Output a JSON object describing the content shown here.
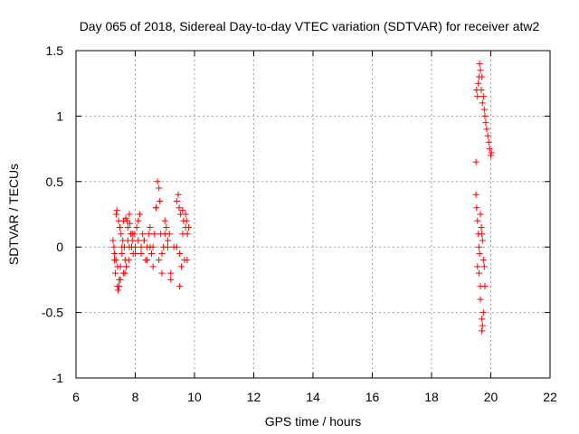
{
  "chart_data": {
    "type": "scatter",
    "title": "Day 065 of 2018, Sidereal Day-to-day VTEC variation (SDTVAR) for receiver atw2",
    "xlabel": "GPS time / hours",
    "ylabel": "SDTVAR / TECUs",
    "xlim": [
      6,
      22
    ],
    "ylim": [
      -1,
      1.5
    ],
    "xticks": [
      6,
      8,
      10,
      12,
      14,
      16,
      18,
      20,
      22
    ],
    "yticks": [
      -1,
      -0.5,
      0,
      0.5,
      1,
      1.5
    ],
    "xtick_labels": [
      "6",
      "8",
      "10",
      "12",
      "14",
      "16",
      "18",
      "20",
      "22"
    ],
    "ytick_labels": [
      "-1",
      "-0.5",
      "0",
      "0.5",
      "1",
      "1.5"
    ],
    "grid": true,
    "marker": "+",
    "color": "#ff0000",
    "series": [
      {
        "name": "SDTVAR",
        "x": [
          7.25,
          7.28,
          7.3,
          7.33,
          7.36,
          7.38,
          7.4,
          7.42,
          7.44,
          7.46,
          7.48,
          7.5,
          7.52,
          7.55,
          7.58,
          7.6,
          7.63,
          7.66,
          7.68,
          7.7,
          7.72,
          7.75,
          7.78,
          7.8,
          7.82,
          7.85,
          7.88,
          7.9,
          7.93,
          7.96,
          8.0,
          8.05,
          8.1,
          8.15,
          8.2,
          8.25,
          8.3,
          8.35,
          8.4,
          8.45,
          8.5,
          8.55,
          8.6,
          8.65,
          8.7,
          8.75,
          8.8,
          8.83,
          8.86,
          8.9,
          8.95,
          9.0,
          9.05,
          9.1,
          9.15,
          9.2,
          9.3,
          9.4,
          9.45,
          9.48,
          9.5,
          9.53,
          9.56,
          9.6,
          9.63,
          9.66,
          9.7,
          9.73,
          9.76,
          9.8,
          7.3,
          7.35,
          7.4,
          7.45,
          7.5,
          7.55,
          7.6,
          7.65,
          7.7,
          7.75,
          7.8,
          7.9,
          8.0,
          8.1,
          8.2,
          8.3,
          8.4,
          8.5,
          8.6,
          8.7,
          8.8,
          8.9,
          9.0,
          9.1,
          9.2,
          9.4,
          9.5,
          9.6,
          9.7,
          9.75,
          19.5,
          19.52,
          19.55,
          19.58,
          19.6,
          19.62,
          19.65,
          19.68,
          19.7,
          19.72,
          19.75,
          19.78,
          19.8,
          19.83,
          19.86,
          19.9,
          19.93,
          19.96,
          20.0,
          20.02,
          19.5,
          19.52,
          19.55,
          19.58,
          19.6,
          19.62,
          19.65,
          19.68,
          19.7,
          19.72,
          19.75,
          19.78,
          19.8,
          19.55,
          19.6,
          19.65,
          19.7,
          19.72,
          19.75,
          19.65,
          19.7
        ],
        "y": [
          0.05,
          0.0,
          -0.1,
          -0.2,
          0.25,
          0.28,
          -0.3,
          -0.33,
          0.2,
          -0.25,
          0.15,
          -0.15,
          0.1,
          -0.05,
          0.05,
          -0.2,
          0.0,
          -0.1,
          0.22,
          -0.15,
          0.2,
          0.15,
          -0.1,
          0.25,
          0.18,
          0.1,
          0.0,
          0.05,
          -0.05,
          0.1,
          0.0,
          0.15,
          0.2,
          0.25,
          -0.05,
          0.1,
          0.05,
          -0.1,
          0.0,
          0.1,
          0.15,
          -0.05,
          0.0,
          0.1,
          0.3,
          0.5,
          0.45,
          0.35,
          0.1,
          -0.05,
          0.0,
          0.2,
          0.15,
          0.05,
          0.1,
          -0.2,
          0.0,
          0.35,
          0.4,
          0.3,
          -0.3,
          0.25,
          -0.15,
          0.28,
          0.2,
          -0.1,
          0.25,
          0.2,
          0.1,
          0.15,
          -0.05,
          -0.1,
          -0.15,
          -0.3,
          -0.25,
          0.0,
          0.2,
          -0.2,
          -0.15,
          0.05,
          0.0,
          0.1,
          -0.05,
          0.05,
          0.0,
          0.05,
          -0.1,
          0.0,
          -0.15,
          0.3,
          -0.1,
          -0.2,
          0.1,
          0.0,
          -0.25,
          0.0,
          -0.05,
          0.1,
          0.15,
          -0.1,
          0.65,
          1.2,
          1.15,
          1.25,
          1.3,
          1.4,
          1.35,
          1.2,
          1.3,
          1.1,
          1.15,
          1.05,
          1.0,
          0.95,
          0.9,
          0.85,
          0.8,
          0.75,
          0.7,
          0.72,
          0.4,
          0.3,
          0.2,
          0.1,
          0.0,
          -0.05,
          0.25,
          0.15,
          0.1,
          0.05,
          -0.1,
          -0.15,
          -0.3,
          -0.15,
          -0.2,
          -0.4,
          -0.55,
          -0.6,
          -0.5,
          -0.3,
          -0.64
        ]
      }
    ]
  }
}
